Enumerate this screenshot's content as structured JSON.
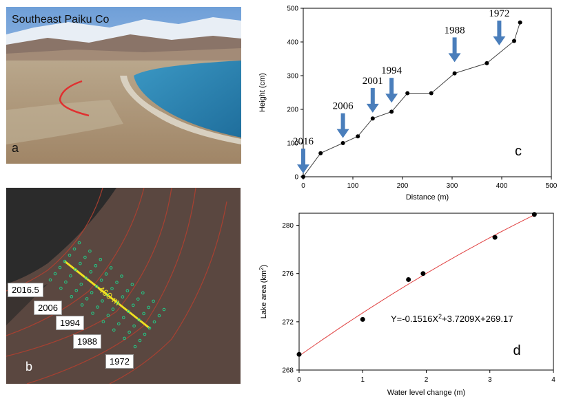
{
  "panel_a": {
    "caption": "Southeast  Paiku Co",
    "letter": "a"
  },
  "panel_b": {
    "letter": "b",
    "transect_label": "460 m",
    "year_labels": [
      "2016.5",
      "2006",
      "1994",
      "1988",
      "1972"
    ]
  },
  "colors": {
    "arrow": "#4a7ebb",
    "fit_line": "#e04040",
    "shoreline": "#e03030",
    "transect": "#f0e020",
    "points": "#22cc88"
  },
  "chart_data": [
    {
      "id": "c",
      "type": "line",
      "letter": "c",
      "xlabel": "Distance (m)",
      "ylabel": "Height (cm)",
      "xlim": [
        0,
        500
      ],
      "ylim": [
        0,
        500
      ],
      "xticks": [
        0,
        100,
        200,
        300,
        400,
        500
      ],
      "yticks": [
        0,
        100,
        200,
        300,
        400,
        500
      ],
      "x": [
        0,
        35,
        80,
        110,
        140,
        178,
        210,
        258,
        305,
        370,
        425,
        437
      ],
      "y": [
        0,
        70,
        100,
        120,
        173,
        193,
        248,
        248,
        307,
        337,
        403,
        458
      ],
      "annotations": [
        {
          "label": "2016",
          "x": 0,
          "y": 10
        },
        {
          "label": "2006",
          "x": 80,
          "y": 115
        },
        {
          "label": "2001",
          "x": 140,
          "y": 190
        },
        {
          "label": "1994",
          "x": 178,
          "y": 220
        },
        {
          "label": "1988",
          "x": 305,
          "y": 340
        },
        {
          "label": "1972",
          "x": 395,
          "y": 390
        }
      ]
    },
    {
      "id": "d",
      "type": "scatter",
      "letter": "d",
      "xlabel": "Water level change (m)",
      "ylabel": "Lake area (km²)",
      "ylabel_base": "Lake area (km",
      "ylabel_sup": "2",
      "ylabel_end": ")",
      "xlim": [
        0,
        4
      ],
      "ylim": [
        268,
        281
      ],
      "xticks": [
        0,
        1,
        2,
        3,
        4
      ],
      "yticks": [
        268,
        272,
        276,
        280
      ],
      "x": [
        0,
        1.0,
        1.72,
        1.95,
        3.08,
        3.7
      ],
      "y": [
        269.3,
        272.2,
        275.5,
        276.0,
        279.0,
        280.9
      ],
      "equation_pre": "Y=-0.1516X",
      "equation_sup": "2",
      "equation_post": "+3.7209X+269.17",
      "fit": {
        "a": -0.1516,
        "b": 3.7209,
        "c": 269.17
      }
    }
  ]
}
